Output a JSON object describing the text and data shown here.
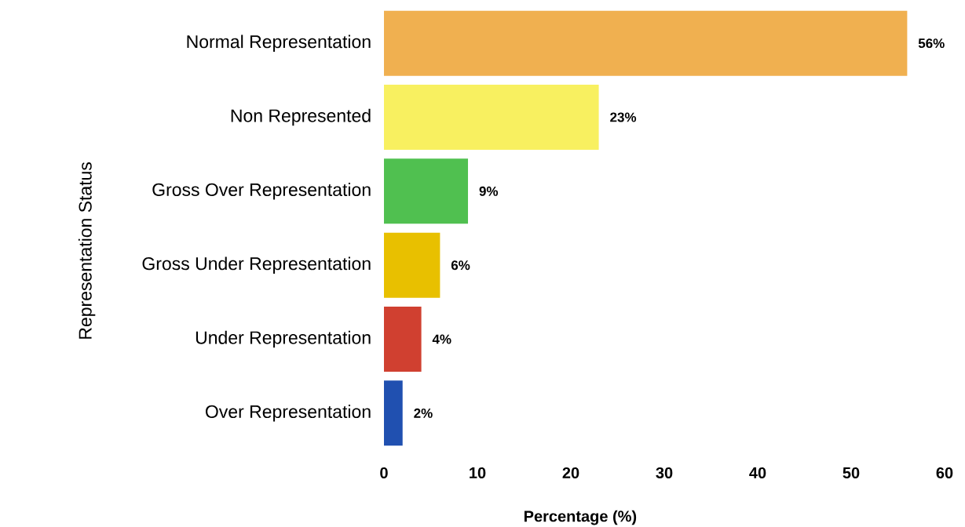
{
  "chart_data": {
    "type": "bar",
    "orientation": "horizontal",
    "categories": [
      "Normal Representation",
      "Non Represented",
      "Gross Over Representation",
      "Gross Under Representation",
      "Under Representation",
      "Over Representation"
    ],
    "values": [
      56,
      23,
      9,
      6,
      4,
      2
    ],
    "colors": [
      "#f0b050",
      "#f8f060",
      "#50c050",
      "#e8c000",
      "#d04030",
      "#2050b0"
    ],
    "value_labels": [
      "56%",
      "23%",
      "9%",
      "6%",
      "4%",
      "2%"
    ],
    "xlabel": "Percentage (%)",
    "ylabel": "Representation Status",
    "xlim": [
      0,
      60
    ],
    "xticks": [
      0,
      10,
      20,
      30,
      40,
      50,
      60
    ]
  }
}
